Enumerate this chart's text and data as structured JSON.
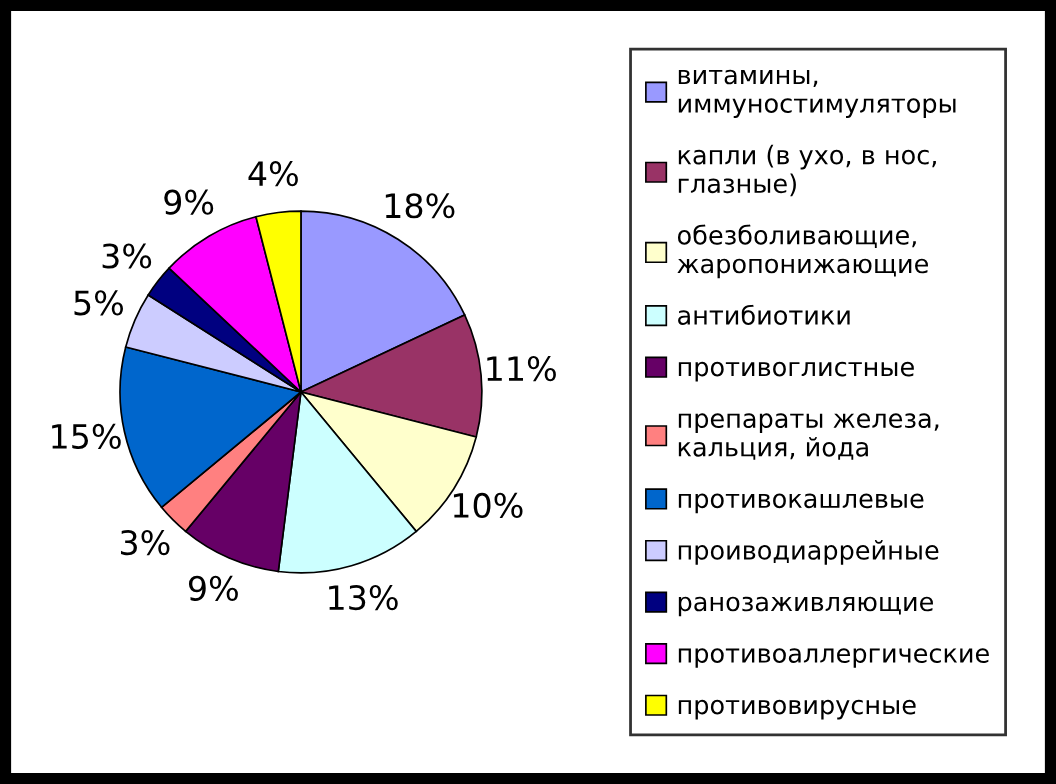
{
  "chart_data": {
    "type": "pie",
    "categories": [
      "витамины,\nиммуностимуляторы",
      "капли (в ухо, в нос,\nглазные)",
      "обезболивающие,\nжаропонижающие",
      "антибиотики",
      "противоглистные",
      "препараты железа,\nкальция, йода",
      "противокашлевые",
      "проиводиаррейные",
      "ранозаживляющие",
      "противоаллергические",
      "противовирусные"
    ],
    "values": [
      18,
      11,
      10,
      13,
      9,
      3,
      15,
      5,
      3,
      9,
      4
    ],
    "value_labels": [
      "18%",
      "11%",
      "10%",
      "13%",
      "9%",
      "3%",
      "15%",
      "5%",
      "3%",
      "9%",
      "4%"
    ],
    "colors": [
      "#9999ff",
      "#993366",
      "#ffffcc",
      "#ccffff",
      "#660066",
      "#ff8080",
      "#0066cc",
      "#ccccff",
      "#000080",
      "#ff00ff",
      "#ffff00"
    ],
    "legend": "right"
  }
}
